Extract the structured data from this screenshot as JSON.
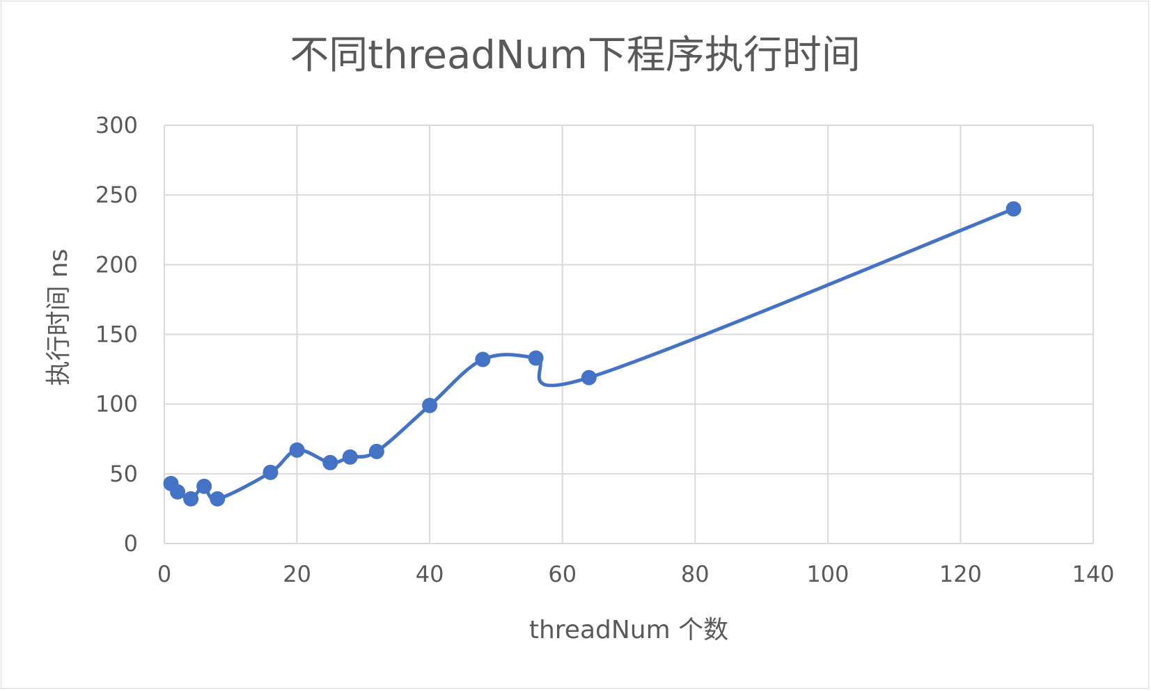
{
  "chart_data": {
    "type": "scatter",
    "title": "不同threadNum下程序执行时间",
    "xlabel": "threadNum 个数",
    "ylabel": "执行时间 ns",
    "xlim": [
      0,
      140
    ],
    "ylim": [
      0,
      300
    ],
    "xticks": [
      "0",
      "20",
      "40",
      "60",
      "80",
      "100",
      "120",
      "140"
    ],
    "yticks": [
      "0",
      "50",
      "100",
      "150",
      "200",
      "250",
      "300"
    ],
    "grid": true,
    "smooth_line": true,
    "colors": {
      "series": "#4472c4",
      "grid": "#d9d9d9",
      "text": "#595959"
    },
    "series": [
      {
        "x": [
          1,
          2,
          4,
          6,
          8,
          16,
          20,
          25,
          28,
          32,
          40,
          48,
          56,
          64,
          128
        ],
        "y": [
          43,
          37,
          32,
          41,
          32,
          51,
          67,
          58,
          62,
          66,
          99,
          132,
          133,
          119,
          240
        ]
      }
    ]
  }
}
